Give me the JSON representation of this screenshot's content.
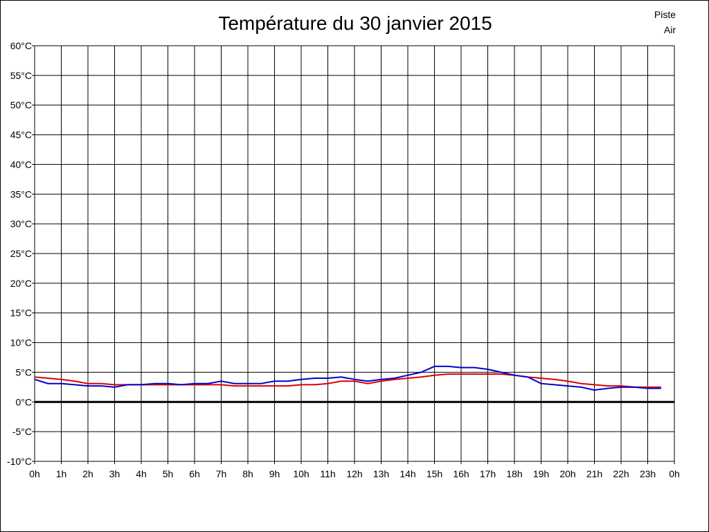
{
  "chart_data": {
    "type": "line",
    "title": "Température du 30 janvier 2015",
    "x_tick_labels": [
      "0h",
      "1h",
      "2h",
      "3h",
      "4h",
      "5h",
      "6h",
      "7h",
      "8h",
      "9h",
      "10h",
      "11h",
      "12h",
      "13h",
      "14h",
      "15h",
      "16h",
      "17h",
      "18h",
      "19h",
      "20h",
      "21h",
      "22h",
      "23h",
      "0h"
    ],
    "y_tick_labels": [
      "60°C",
      "55°C",
      "50°C",
      "45°C",
      "40°C",
      "35°C",
      "30°C",
      "25°C",
      "20°C",
      "15°C",
      "10°C",
      "5°C",
      "0°C",
      "-5°C",
      "-10°C"
    ],
    "ylim": [
      -10,
      60
    ],
    "xlim": [
      0,
      24
    ],
    "grid": true,
    "legend_placement": "top-right",
    "series": [
      {
        "name": "Piste",
        "color": "#dd0000",
        "x": [
          0,
          1,
          1.5,
          2,
          2.5,
          3,
          3.5,
          4,
          4.5,
          5,
          5.5,
          6,
          6.5,
          7,
          7.5,
          8,
          8.5,
          9,
          9.5,
          10,
          10.5,
          11,
          11.5,
          12,
          12.5,
          13,
          13.5,
          14,
          14.5,
          15,
          15.5,
          16,
          16.5,
          17,
          17.5,
          18,
          18.5,
          19,
          19.5,
          20,
          20.5,
          21,
          21.5,
          22,
          22.5,
          23,
          23.5
        ],
        "values": [
          4.2,
          3.8,
          3.5,
          3.1,
          3.1,
          2.9,
          2.9,
          2.9,
          2.9,
          2.9,
          2.9,
          2.9,
          2.9,
          2.9,
          2.7,
          2.7,
          2.7,
          2.7,
          2.7,
          2.9,
          2.9,
          3.1,
          3.5,
          3.5,
          3.1,
          3.5,
          3.8,
          4.0,
          4.2,
          4.5,
          4.7,
          4.7,
          4.7,
          4.7,
          4.7,
          4.5,
          4.2,
          4.0,
          3.8,
          3.5,
          3.1,
          2.9,
          2.7,
          2.7,
          2.5,
          2.5,
          2.5
        ]
      },
      {
        "name": "Air",
        "color": "#0000cc",
        "x": [
          0,
          0.5,
          1,
          1.5,
          2,
          2.5,
          3,
          3.5,
          4,
          4.5,
          5,
          5.5,
          6,
          6.5,
          7,
          7.5,
          8,
          8.5,
          9,
          9.5,
          10,
          10.5,
          11,
          11.5,
          12,
          12.5,
          13,
          13.5,
          14,
          14.5,
          15,
          15.5,
          16,
          16.5,
          17,
          17.5,
          18,
          18.5,
          19,
          19.5,
          20,
          20.5,
          21,
          21.5,
          22,
          22.5,
          23,
          23.5
        ],
        "values": [
          3.8,
          3.1,
          3.1,
          2.9,
          2.7,
          2.7,
          2.5,
          2.9,
          2.9,
          3.1,
          3.1,
          2.9,
          3.1,
          3.1,
          3.5,
          3.1,
          3.1,
          3.1,
          3.5,
          3.5,
          3.8,
          4.0,
          4.0,
          4.2,
          3.8,
          3.5,
          3.8,
          4.0,
          4.5,
          5.0,
          6.0,
          6.0,
          5.8,
          5.8,
          5.5,
          5.0,
          4.5,
          4.2,
          3.1,
          2.9,
          2.7,
          2.5,
          2.0,
          2.3,
          2.5,
          2.5,
          2.3,
          2.3
        ]
      }
    ]
  }
}
